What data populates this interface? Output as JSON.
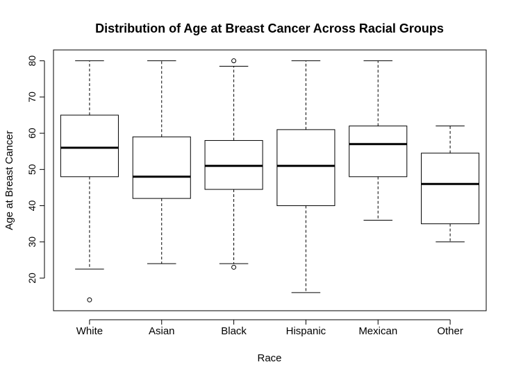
{
  "chart_data": {
    "type": "box",
    "title": "Distribution of Age at Breast Cancer Across Racial Groups",
    "xlabel": "Race",
    "ylabel": "Age at Breast Cancer",
    "categories": [
      "White",
      "Asian",
      "Black",
      "Hispanic",
      "Mexican",
      "Other"
    ],
    "y_ticks": [
      "20",
      "30",
      "40",
      "50",
      "60",
      "70",
      "80"
    ],
    "ylim": [
      11,
      83
    ],
    "grid": false,
    "boxes": [
      {
        "category": "White",
        "whisker_low": 22.5,
        "q1": 48,
        "median": 56,
        "q3": 65,
        "whisker_high": 80,
        "outliers": [
          14
        ]
      },
      {
        "category": "Asian",
        "whisker_low": 24,
        "q1": 42,
        "median": 48,
        "q3": 59,
        "whisker_high": 80,
        "outliers": []
      },
      {
        "category": "Black",
        "whisker_low": 24,
        "q1": 44.5,
        "median": 51,
        "q3": 58,
        "whisker_high": 78.5,
        "outliers": [
          23,
          80
        ]
      },
      {
        "category": "Hispanic",
        "whisker_low": 16,
        "q1": 40,
        "median": 51,
        "q3": 61,
        "whisker_high": 80,
        "outliers": []
      },
      {
        "category": "Mexican",
        "whisker_low": 36,
        "q1": 48,
        "median": 57,
        "q3": 62,
        "whisker_high": 80,
        "outliers": []
      },
      {
        "category": "Other",
        "whisker_low": 30,
        "q1": 35,
        "median": 46,
        "q3": 54.5,
        "whisker_high": 62,
        "outliers": []
      }
    ]
  }
}
